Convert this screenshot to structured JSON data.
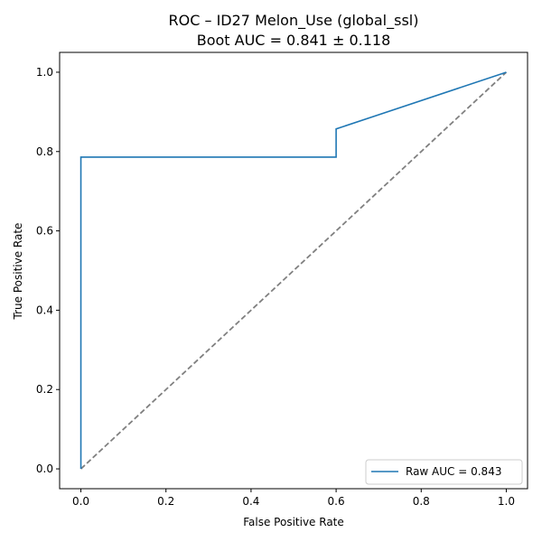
{
  "chart_data": {
    "type": "line",
    "title": "ROC – ID27 Melon_Use (global_ssl)",
    "subtitle": "Boot AUC = 0.841 ± 0.118",
    "xlabel": "False Positive Rate",
    "ylabel": "True Positive Rate",
    "xlim": [
      -0.05,
      1.05
    ],
    "ylim": [
      -0.05,
      1.05
    ],
    "xticks": [
      0.0,
      0.2,
      0.4,
      0.6,
      0.8,
      1.0
    ],
    "xtick_labels": [
      "0.0",
      "0.2",
      "0.4",
      "0.6",
      "0.8",
      "1.0"
    ],
    "yticks": [
      0.0,
      0.2,
      0.4,
      0.6,
      0.8,
      1.0
    ],
    "ytick_labels": [
      "0.0",
      "0.2",
      "0.4",
      "0.6",
      "0.8",
      "1.0"
    ],
    "grid": false,
    "legend_position": "bottom-right",
    "series": [
      {
        "name": "Raw AUC = 0.843",
        "color": "#1f77b4",
        "style": "solid",
        "x": [
          0.0,
          0.0,
          0.6,
          0.6,
          1.0
        ],
        "y": [
          0.0,
          0.786,
          0.786,
          0.857,
          1.0
        ]
      }
    ],
    "reference_line": {
      "color": "#808080",
      "style": "dashed",
      "x": [
        0.0,
        1.0
      ],
      "y": [
        0.0,
        1.0
      ]
    }
  }
}
